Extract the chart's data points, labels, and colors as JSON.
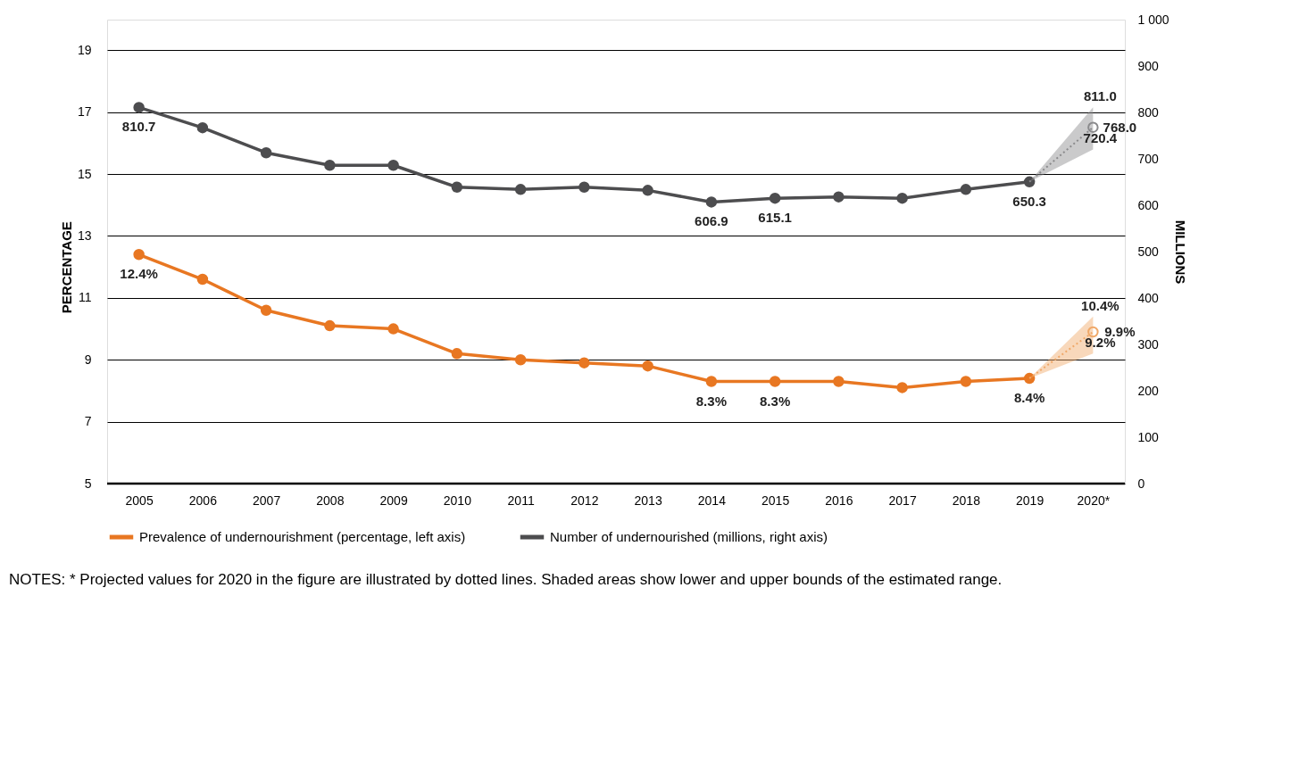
{
  "chart_data": {
    "type": "line",
    "categories": [
      "2005",
      "2006",
      "2007",
      "2008",
      "2009",
      "2010",
      "2011",
      "2012",
      "2013",
      "2014",
      "2015",
      "2016",
      "2017",
      "2018",
      "2019",
      "2020*"
    ],
    "ylabel": "PERCENTAGE",
    "y2label": "MILLIONS",
    "ylim": [
      5,
      19
    ],
    "yticks": [
      5,
      7,
      9,
      11,
      13,
      15,
      17,
      19
    ],
    "y2lim": [
      0,
      1000
    ],
    "y2ticks": [
      0,
      100,
      200,
      300,
      400,
      500,
      600,
      700,
      800,
      900,
      {
        "value": 1000,
        "label": "1 000"
      }
    ],
    "grid": "y",
    "legend": "bottom",
    "marker": "circle",
    "series": [
      {
        "name": "Prevalence of undernourishment (percentage, left axis)",
        "color": "#e87722",
        "line_style": "solid",
        "values": [
          12.4,
          11.6,
          10.6,
          10.1,
          10.0,
          9.2,
          9.0,
          8.9,
          8.8,
          8.3,
          8.3,
          8.3,
          8.1,
          8.3,
          8.4,
          null
        ],
        "value_labels": [
          "12.4%",
          null,
          null,
          null,
          null,
          null,
          null,
          null,
          null,
          "8.3%",
          "8.3%",
          null,
          null,
          null,
          "8.4%",
          null
        ]
      },
      {
        "color": "#f0a868",
        "line_style": "dotted",
        "values": [
          null,
          null,
          null,
          null,
          null,
          null,
          null,
          null,
          null,
          null,
          null,
          null,
          null,
          null,
          8.4,
          9.9
        ],
        "lower": [
          null,
          null,
          null,
          null,
          null,
          null,
          null,
          null,
          null,
          null,
          null,
          null,
          null,
          null,
          8.4,
          9.2
        ],
        "upper": [
          null,
          null,
          null,
          null,
          null,
          null,
          null,
          null,
          null,
          null,
          null,
          null,
          null,
          null,
          8.4,
          10.4
        ],
        "value_labels": [
          null,
          null,
          null,
          null,
          null,
          null,
          null,
          null,
          null,
          null,
          null,
          null,
          null,
          null,
          null,
          "9.9%"
        ]
      },
      {
        "name": "Number of undernourished (millions, right axis)",
        "color": "#4d4d4f",
        "axis": "y2",
        "line_style": "solid",
        "values": [
          810.7,
          767,
          713,
          686,
          686,
          639,
          634,
          639,
          632,
          606.9,
          615.1,
          618,
          615,
          634,
          650.3,
          null
        ],
        "value_labels": [
          "810.7",
          null,
          null,
          null,
          null,
          null,
          null,
          null,
          null,
          "606.9",
          "615.1",
          null,
          null,
          null,
          "650.3",
          null
        ]
      },
      {
        "color": "#8a8a8c",
        "axis": "y2",
        "line_style": "dotted",
        "values": [
          null,
          null,
          null,
          null,
          null,
          null,
          null,
          null,
          null,
          null,
          null,
          null,
          null,
          null,
          650.3,
          768.0
        ],
        "lower": [
          null,
          null,
          null,
          null,
          null,
          null,
          null,
          null,
          null,
          null,
          null,
          null,
          null,
          null,
          650.3,
          720.4
        ],
        "upper": [
          null,
          null,
          null,
          null,
          null,
          null,
          null,
          null,
          null,
          null,
          null,
          null,
          null,
          null,
          650.3,
          811.0
        ],
        "value_labels": [
          null,
          null,
          null,
          null,
          null,
          null,
          null,
          null,
          null,
          null,
          null,
          null,
          null,
          null,
          null,
          "768.0"
        ]
      }
    ],
    "annotations": [
      {
        "text": "10.4%",
        "x": "2020*",
        "y": 10.4
      },
      {
        "text": "9.2%",
        "x": "2020*",
        "y": 9.2
      },
      "811.0",
      "720.4",
      "NOTES: * Projected values for 2020 in the figure are illustrated by dotted lines. Shaded areas show lower and upper bounds of the estimated range."
    ]
  }
}
